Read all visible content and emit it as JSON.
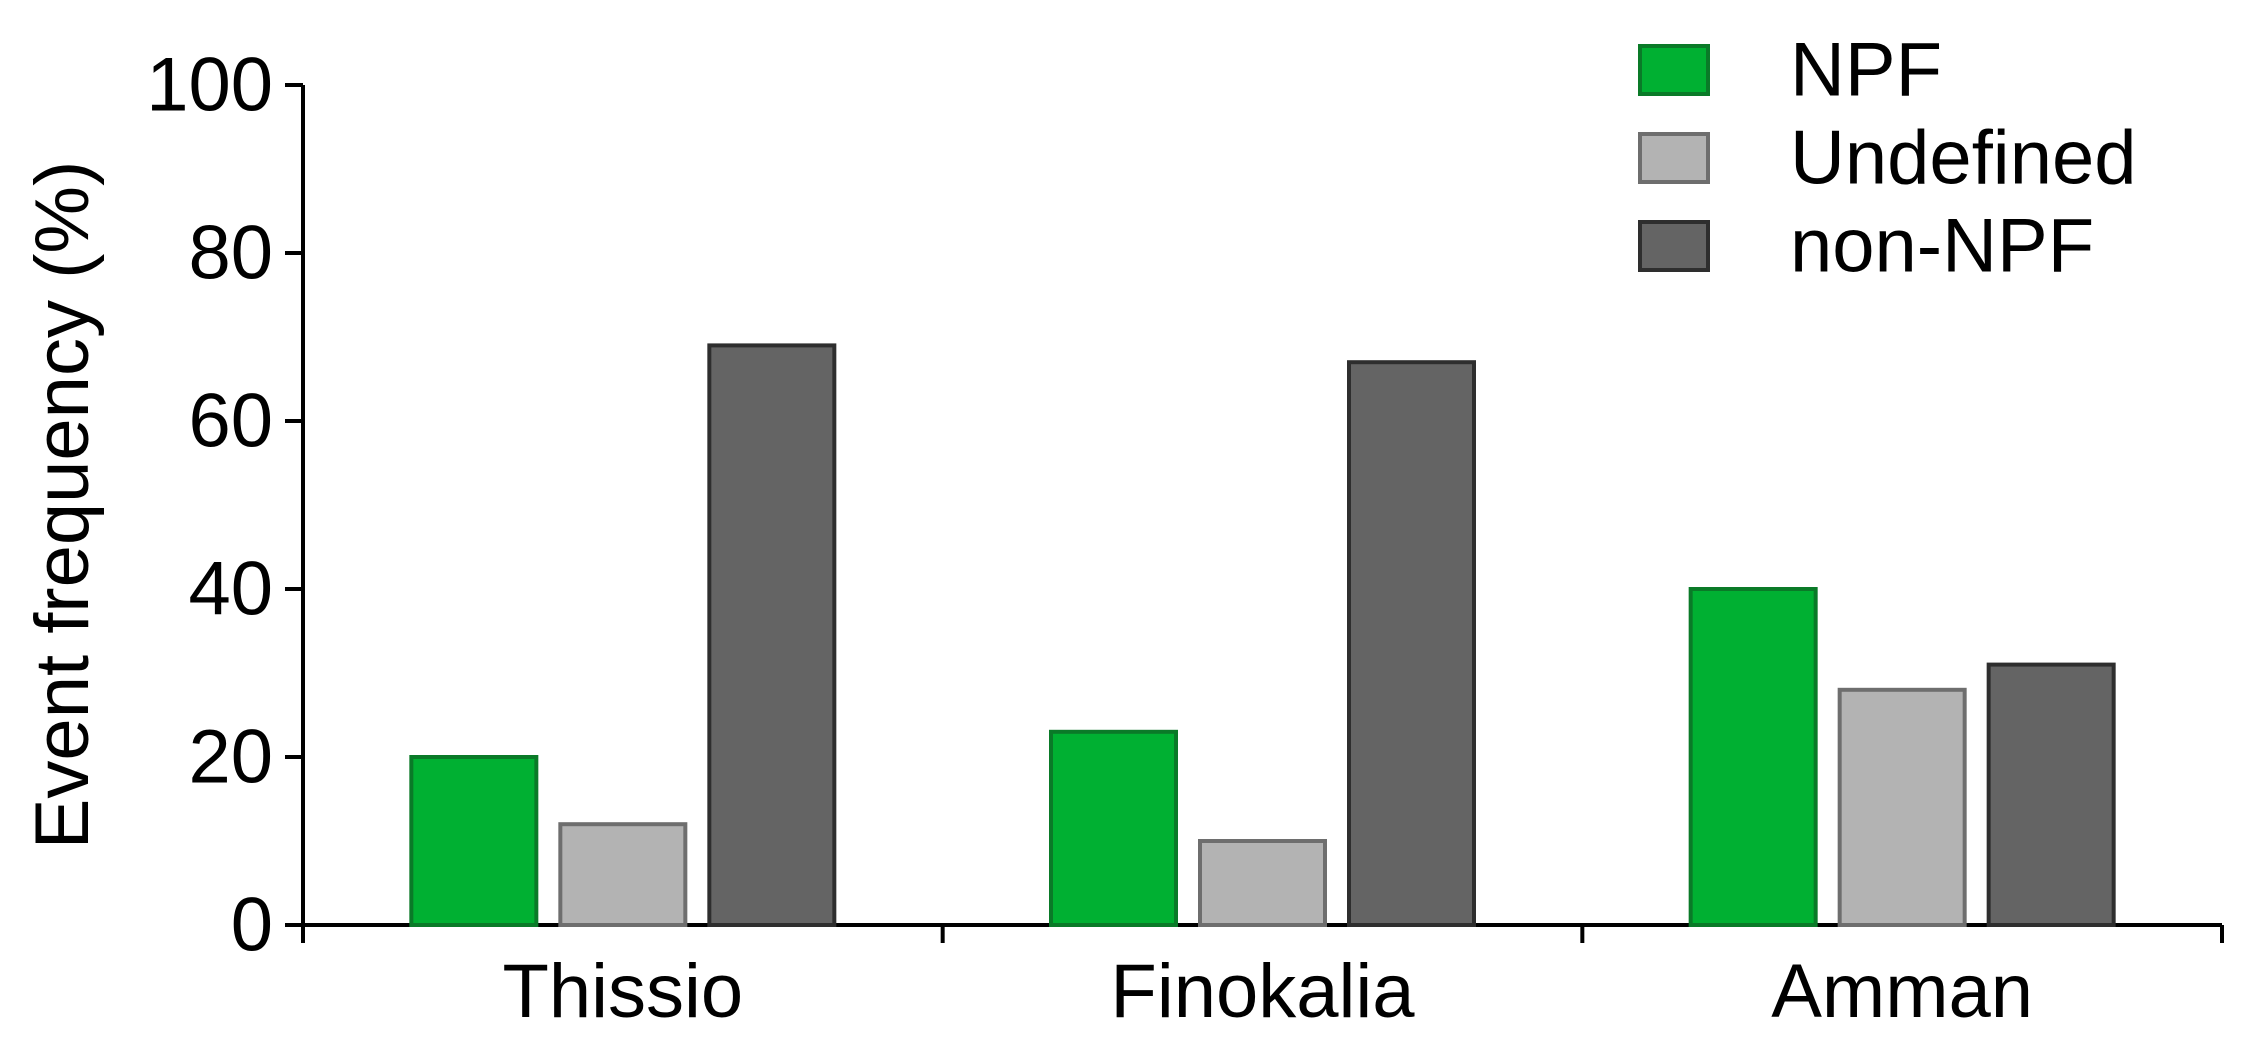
{
  "chart_data": {
    "type": "bar",
    "title": "",
    "xlabel": "",
    "ylabel": "Event frequency (%)",
    "ylim": [
      0,
      100
    ],
    "yticks": [
      0,
      20,
      40,
      60,
      80,
      100
    ],
    "grid": false,
    "legend_position": "top-right",
    "categories": [
      "Thissio",
      "Finokalia",
      "Amman"
    ],
    "series": [
      {
        "name": "NPF",
        "values": [
          20,
          23,
          40
        ],
        "color": "#00b032",
        "border": "#0a7a28"
      },
      {
        "name": "Undefined",
        "values": [
          12,
          10,
          28
        ],
        "color": "#b3b3b3",
        "border": "#6e6e6e"
      },
      {
        "name": "non-NPF",
        "values": [
          69,
          67,
          31
        ],
        "color": "#646464",
        "border": "#2e2e2e"
      }
    ]
  }
}
